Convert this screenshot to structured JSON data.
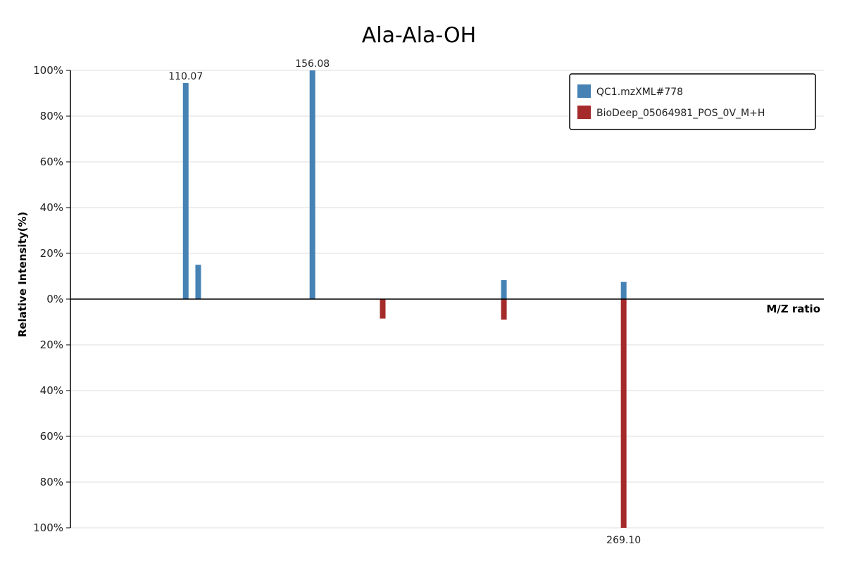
{
  "chart_data": {
    "type": "bar",
    "title": "Ala-Ala-OH",
    "xlabel": "M/Z ratio",
    "ylabel": "Relative Intensity(%)",
    "ylim": [
      -100,
      100
    ],
    "y_ticks": [
      {
        "value": 100,
        "label": "100%"
      },
      {
        "value": 80,
        "label": "80%"
      },
      {
        "value": 60,
        "label": "60%"
      },
      {
        "value": 40,
        "label": "40%"
      },
      {
        "value": 20,
        "label": "20%"
      },
      {
        "value": 0,
        "label": "0%"
      },
      {
        "value": -20,
        "label": "20%"
      },
      {
        "value": -40,
        "label": "40%"
      },
      {
        "value": -60,
        "label": "60%"
      },
      {
        "value": -80,
        "label": "80%"
      },
      {
        "value": -100,
        "label": "100%"
      }
    ],
    "legend_position": "top-right",
    "grid": true,
    "series": [
      {
        "name": "QC1.mzXML#778",
        "color": "#4682b4",
        "direction": "up",
        "peaks": [
          {
            "mz": 110.07,
            "intensity": 94.5,
            "label": "110.07"
          },
          {
            "mz": 114.6,
            "intensity": 15,
            "label": ""
          },
          {
            "mz": 156.08,
            "intensity": 100,
            "label": "156.08"
          },
          {
            "mz": 225.6,
            "intensity": 8.3,
            "label": ""
          },
          {
            "mz": 269.1,
            "intensity": 7.5,
            "label": ""
          }
        ]
      },
      {
        "name": "BioDeep_05064981_POS_0V_M+H",
        "color": "#a52a2a",
        "direction": "down",
        "peaks": [
          {
            "mz": 181.6,
            "intensity": 8.5,
            "label": ""
          },
          {
            "mz": 225.6,
            "intensity": 9,
            "label": ""
          },
          {
            "mz": 269.1,
            "intensity": 100,
            "label": "269.10"
          }
        ]
      }
    ]
  }
}
